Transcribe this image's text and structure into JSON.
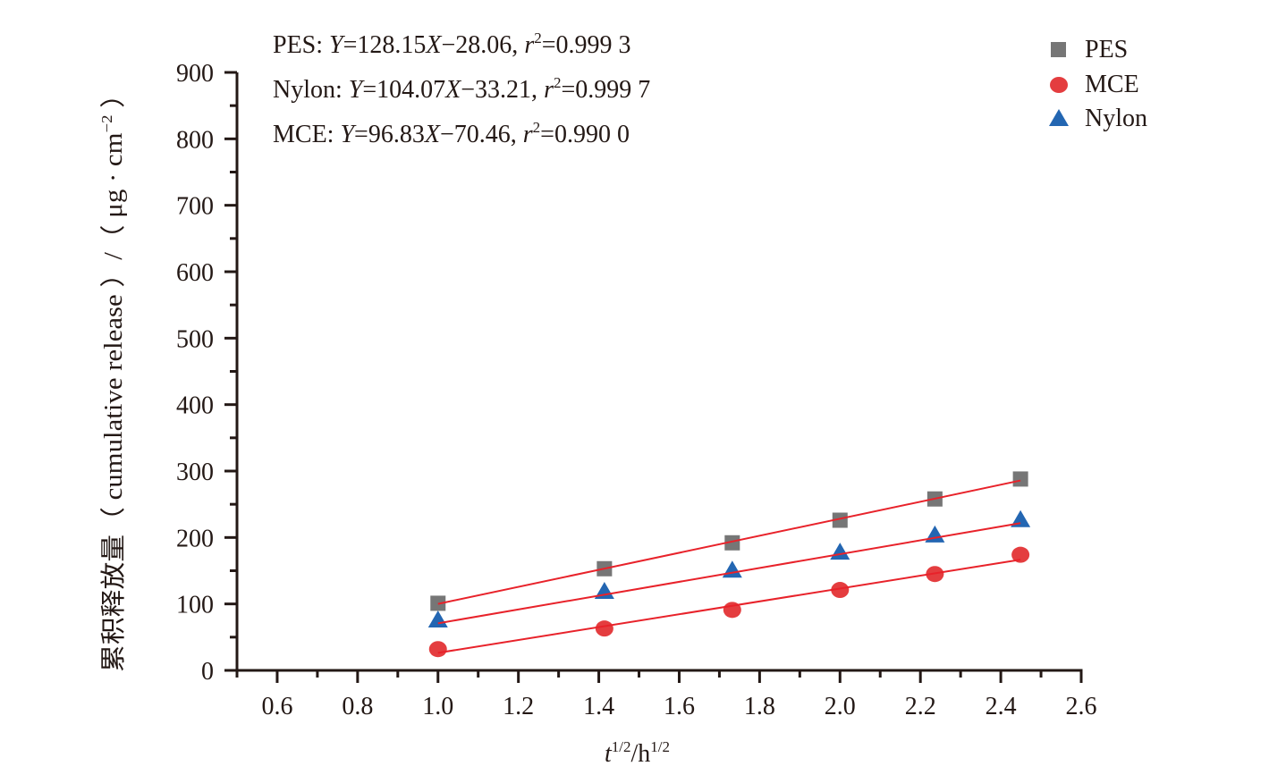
{
  "chart_data": {
    "type": "scatter",
    "title": "",
    "xlabel": {
      "base": "t",
      "sup1": "1/2",
      "mid": "/h",
      "sup2": "1/2"
    },
    "ylabel": {
      "main": "累积释放量（ cumulative release ）/（ μg · cm",
      "sup": "−2",
      "close": " ）"
    },
    "xlim": [
      0.5,
      2.6
    ],
    "ylim": [
      0,
      900
    ],
    "x_ticks": [
      "0.6",
      "0.8",
      "1.0",
      "1.2",
      "1.4",
      "1.6",
      "1.8",
      "2.0",
      "2.2",
      "2.4",
      "2.6"
    ],
    "x_tick_values": [
      0.6,
      0.8,
      1.0,
      1.2,
      1.4,
      1.6,
      1.8,
      2.0,
      2.2,
      2.4,
      2.6
    ],
    "y_ticks": [
      "0",
      "100",
      "200",
      "300",
      "400",
      "500",
      "600",
      "700",
      "800",
      "900"
    ],
    "y_tick_values": [
      0,
      100,
      200,
      300,
      400,
      500,
      600,
      700,
      800,
      900
    ],
    "grid": false,
    "legend_position": "top-right",
    "x": [
      1.0,
      1.414,
      1.732,
      2.0,
      2.236,
      2.449
    ],
    "series": [
      {
        "name": "PES",
        "marker": "square",
        "color": "#767676",
        "values": [
          101,
          153,
          192,
          226,
          258,
          288
        ],
        "fit": {
          "slope": 128.15,
          "intercept": -28.06
        }
      },
      {
        "name": "MCE",
        "marker": "circle",
        "color": "#e43d3f",
        "values": [
          32,
          63,
          91,
          121,
          145,
          174
        ],
        "fit": {
          "slope": 96.83,
          "intercept": -70.46
        }
      },
      {
        "name": "Nylon",
        "marker": "triangle",
        "color": "#2366b2",
        "values": [
          74,
          117,
          149,
          176,
          202,
          225
        ],
        "fit": {
          "slope": 104.07,
          "intercept": -33.21
        }
      }
    ],
    "fit_line_color": "#e8222a",
    "annotations": [
      {
        "name": "PES: ",
        "y": "Y",
        "eq1": "=128.15",
        "x": "X",
        "eq2": "−28.06, ",
        "r": "r",
        "sup": "2",
        "val": "=0.999 3"
      },
      {
        "name": "Nylon: ",
        "y": "Y",
        "eq1": "=104.07",
        "x": "X",
        "eq2": "−33.21, ",
        "r": "r",
        "sup": "2",
        "val": "=0.999 7"
      },
      {
        "name": "MCE: ",
        "y": "Y",
        "eq1": "=96.83",
        "x": "X",
        "eq2": "−70.46, ",
        "r": "r",
        "sup": "2",
        "val": "=0.990 0"
      }
    ]
  }
}
